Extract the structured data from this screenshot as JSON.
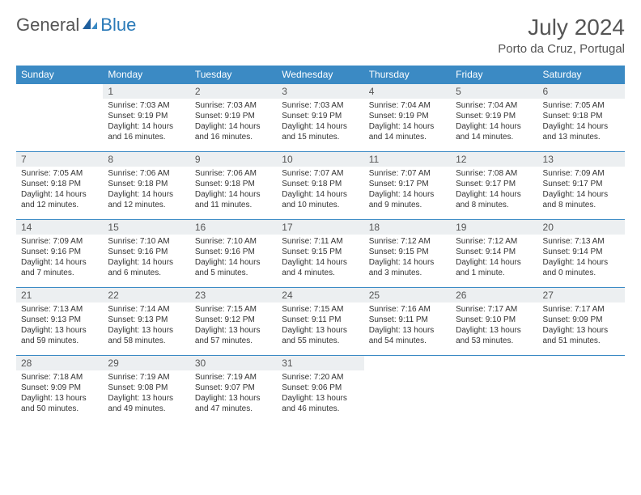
{
  "brand": {
    "part1": "General",
    "part2": "Blue"
  },
  "title": "July 2024",
  "location": "Porto da Cruz, Portugal",
  "colors": {
    "header_bg": "#3b8ac4",
    "header_text": "#ffffff",
    "daynum_bg": "#eceff1",
    "border": "#3b8ac4",
    "brand_gray": "#555555",
    "brand_blue": "#2a7ab8"
  },
  "daynames": [
    "Sunday",
    "Monday",
    "Tuesday",
    "Wednesday",
    "Thursday",
    "Friday",
    "Saturday"
  ],
  "weeks": [
    [
      {
        "n": "",
        "lines": [
          "",
          "",
          "",
          ""
        ]
      },
      {
        "n": "1",
        "lines": [
          "Sunrise: 7:03 AM",
          "Sunset: 9:19 PM",
          "Daylight: 14 hours",
          "and 16 minutes."
        ]
      },
      {
        "n": "2",
        "lines": [
          "Sunrise: 7:03 AM",
          "Sunset: 9:19 PM",
          "Daylight: 14 hours",
          "and 16 minutes."
        ]
      },
      {
        "n": "3",
        "lines": [
          "Sunrise: 7:03 AM",
          "Sunset: 9:19 PM",
          "Daylight: 14 hours",
          "and 15 minutes."
        ]
      },
      {
        "n": "4",
        "lines": [
          "Sunrise: 7:04 AM",
          "Sunset: 9:19 PM",
          "Daylight: 14 hours",
          "and 14 minutes."
        ]
      },
      {
        "n": "5",
        "lines": [
          "Sunrise: 7:04 AM",
          "Sunset: 9:19 PM",
          "Daylight: 14 hours",
          "and 14 minutes."
        ]
      },
      {
        "n": "6",
        "lines": [
          "Sunrise: 7:05 AM",
          "Sunset: 9:18 PM",
          "Daylight: 14 hours",
          "and 13 minutes."
        ]
      }
    ],
    [
      {
        "n": "7",
        "lines": [
          "Sunrise: 7:05 AM",
          "Sunset: 9:18 PM",
          "Daylight: 14 hours",
          "and 12 minutes."
        ]
      },
      {
        "n": "8",
        "lines": [
          "Sunrise: 7:06 AM",
          "Sunset: 9:18 PM",
          "Daylight: 14 hours",
          "and 12 minutes."
        ]
      },
      {
        "n": "9",
        "lines": [
          "Sunrise: 7:06 AM",
          "Sunset: 9:18 PM",
          "Daylight: 14 hours",
          "and 11 minutes."
        ]
      },
      {
        "n": "10",
        "lines": [
          "Sunrise: 7:07 AM",
          "Sunset: 9:18 PM",
          "Daylight: 14 hours",
          "and 10 minutes."
        ]
      },
      {
        "n": "11",
        "lines": [
          "Sunrise: 7:07 AM",
          "Sunset: 9:17 PM",
          "Daylight: 14 hours",
          "and 9 minutes."
        ]
      },
      {
        "n": "12",
        "lines": [
          "Sunrise: 7:08 AM",
          "Sunset: 9:17 PM",
          "Daylight: 14 hours",
          "and 8 minutes."
        ]
      },
      {
        "n": "13",
        "lines": [
          "Sunrise: 7:09 AM",
          "Sunset: 9:17 PM",
          "Daylight: 14 hours",
          "and 8 minutes."
        ]
      }
    ],
    [
      {
        "n": "14",
        "lines": [
          "Sunrise: 7:09 AM",
          "Sunset: 9:16 PM",
          "Daylight: 14 hours",
          "and 7 minutes."
        ]
      },
      {
        "n": "15",
        "lines": [
          "Sunrise: 7:10 AM",
          "Sunset: 9:16 PM",
          "Daylight: 14 hours",
          "and 6 minutes."
        ]
      },
      {
        "n": "16",
        "lines": [
          "Sunrise: 7:10 AM",
          "Sunset: 9:16 PM",
          "Daylight: 14 hours",
          "and 5 minutes."
        ]
      },
      {
        "n": "17",
        "lines": [
          "Sunrise: 7:11 AM",
          "Sunset: 9:15 PM",
          "Daylight: 14 hours",
          "and 4 minutes."
        ]
      },
      {
        "n": "18",
        "lines": [
          "Sunrise: 7:12 AM",
          "Sunset: 9:15 PM",
          "Daylight: 14 hours",
          "and 3 minutes."
        ]
      },
      {
        "n": "19",
        "lines": [
          "Sunrise: 7:12 AM",
          "Sunset: 9:14 PM",
          "Daylight: 14 hours",
          "and 1 minute."
        ]
      },
      {
        "n": "20",
        "lines": [
          "Sunrise: 7:13 AM",
          "Sunset: 9:14 PM",
          "Daylight: 14 hours",
          "and 0 minutes."
        ]
      }
    ],
    [
      {
        "n": "21",
        "lines": [
          "Sunrise: 7:13 AM",
          "Sunset: 9:13 PM",
          "Daylight: 13 hours",
          "and 59 minutes."
        ]
      },
      {
        "n": "22",
        "lines": [
          "Sunrise: 7:14 AM",
          "Sunset: 9:13 PM",
          "Daylight: 13 hours",
          "and 58 minutes."
        ]
      },
      {
        "n": "23",
        "lines": [
          "Sunrise: 7:15 AM",
          "Sunset: 9:12 PM",
          "Daylight: 13 hours",
          "and 57 minutes."
        ]
      },
      {
        "n": "24",
        "lines": [
          "Sunrise: 7:15 AM",
          "Sunset: 9:11 PM",
          "Daylight: 13 hours",
          "and 55 minutes."
        ]
      },
      {
        "n": "25",
        "lines": [
          "Sunrise: 7:16 AM",
          "Sunset: 9:11 PM",
          "Daylight: 13 hours",
          "and 54 minutes."
        ]
      },
      {
        "n": "26",
        "lines": [
          "Sunrise: 7:17 AM",
          "Sunset: 9:10 PM",
          "Daylight: 13 hours",
          "and 53 minutes."
        ]
      },
      {
        "n": "27",
        "lines": [
          "Sunrise: 7:17 AM",
          "Sunset: 9:09 PM",
          "Daylight: 13 hours",
          "and 51 minutes."
        ]
      }
    ],
    [
      {
        "n": "28",
        "lines": [
          "Sunrise: 7:18 AM",
          "Sunset: 9:09 PM",
          "Daylight: 13 hours",
          "and 50 minutes."
        ]
      },
      {
        "n": "29",
        "lines": [
          "Sunrise: 7:19 AM",
          "Sunset: 9:08 PM",
          "Daylight: 13 hours",
          "and 49 minutes."
        ]
      },
      {
        "n": "30",
        "lines": [
          "Sunrise: 7:19 AM",
          "Sunset: 9:07 PM",
          "Daylight: 13 hours",
          "and 47 minutes."
        ]
      },
      {
        "n": "31",
        "lines": [
          "Sunrise: 7:20 AM",
          "Sunset: 9:06 PM",
          "Daylight: 13 hours",
          "and 46 minutes."
        ]
      },
      {
        "n": "",
        "lines": [
          "",
          "",
          "",
          ""
        ]
      },
      {
        "n": "",
        "lines": [
          "",
          "",
          "",
          ""
        ]
      },
      {
        "n": "",
        "lines": [
          "",
          "",
          "",
          ""
        ]
      }
    ]
  ]
}
